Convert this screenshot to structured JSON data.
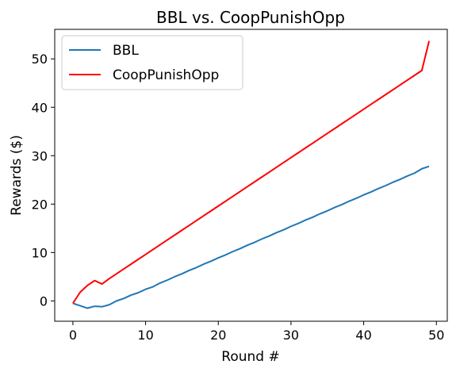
{
  "chart_data": {
    "type": "line",
    "title": "BBL vs. CoopPunishOpp",
    "xlabel": "Round #",
    "ylabel": "Rewards ($)",
    "xlim": [
      -2.5,
      51.5
    ],
    "ylim": [
      -4.2,
      56.1
    ],
    "xticks": [
      0,
      10,
      20,
      30,
      40,
      50
    ],
    "yticks": [
      0,
      10,
      20,
      30,
      40,
      50
    ],
    "grid": false,
    "legend_position": "top-left",
    "series": [
      {
        "name": "BBL",
        "color": "#1f77b4",
        "x": [
          0,
          1,
          2,
          3,
          4,
          5,
          6,
          7,
          8,
          9,
          10,
          11,
          12,
          13,
          14,
          15,
          16,
          17,
          18,
          19,
          20,
          21,
          22,
          23,
          24,
          25,
          26,
          27,
          28,
          29,
          30,
          31,
          32,
          33,
          34,
          35,
          36,
          37,
          38,
          39,
          40,
          41,
          42,
          43,
          44,
          45,
          46,
          47,
          48,
          49
        ],
        "values": [
          -0.5,
          -1.0,
          -1.5,
          -1.1,
          -1.2,
          -0.8,
          0.0,
          0.5,
          1.2,
          1.7,
          2.4,
          2.9,
          3.7,
          4.3,
          5.0,
          5.6,
          6.3,
          6.9,
          7.6,
          8.2,
          8.9,
          9.5,
          10.2,
          10.8,
          11.5,
          12.1,
          12.8,
          13.4,
          14.1,
          14.7,
          15.4,
          16.0,
          16.7,
          17.3,
          18.0,
          18.6,
          19.3,
          19.9,
          20.6,
          21.2,
          21.9,
          22.5,
          23.2,
          23.8,
          24.5,
          25.1,
          25.8,
          26.4,
          27.3,
          27.8
        ]
      },
      {
        "name": "CoopPunishOpp",
        "color": "#ff0000",
        "x": [
          0,
          1,
          2,
          3,
          4,
          5,
          6,
          7,
          8,
          9,
          10,
          11,
          12,
          13,
          14,
          15,
          16,
          17,
          18,
          19,
          20,
          21,
          22,
          23,
          24,
          25,
          26,
          27,
          28,
          29,
          30,
          31,
          32,
          33,
          34,
          35,
          36,
          37,
          38,
          39,
          40,
          41,
          42,
          43,
          44,
          45,
          46,
          47,
          48,
          49
        ],
        "values": [
          -0.5,
          1.8,
          3.2,
          4.2,
          3.5,
          4.6,
          5.6,
          6.6,
          7.6,
          8.6,
          9.6,
          10.6,
          11.6,
          12.6,
          13.6,
          14.6,
          15.6,
          16.6,
          17.6,
          18.6,
          19.6,
          20.6,
          21.6,
          22.6,
          23.6,
          24.6,
          25.6,
          26.6,
          27.6,
          28.6,
          29.6,
          30.6,
          31.6,
          32.6,
          33.6,
          34.6,
          35.6,
          36.6,
          37.6,
          38.6,
          39.6,
          40.6,
          41.6,
          42.6,
          43.6,
          44.6,
          45.6,
          46.6,
          47.6,
          53.7
        ]
      }
    ]
  }
}
